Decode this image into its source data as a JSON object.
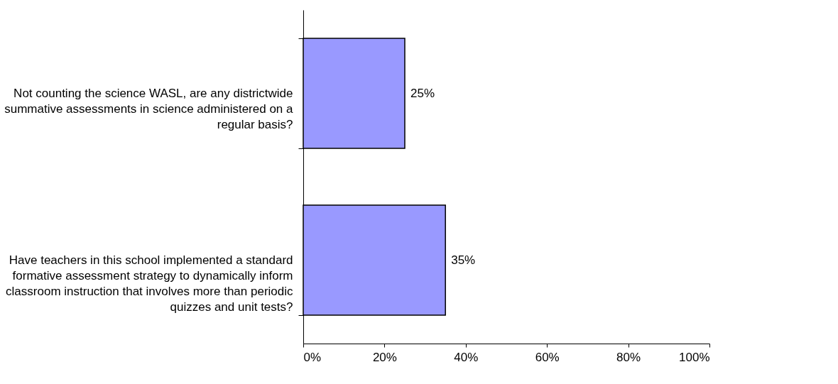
{
  "chart_data": {
    "type": "bar",
    "orientation": "horizontal",
    "categories": [
      "Not counting the science WASL, are any districtwide summative assessments in science administered on a regular basis?",
      "Have teachers in this school implemented a standard formative assessment strategy to dynamically inform classroom instruction that involves more than periodic quizzes and unit tests?"
    ],
    "values": [
      25,
      35
    ],
    "color": "#9999ff",
    "data_labels": true,
    "value_labels": [
      "25%",
      "35%"
    ],
    "xlim": [
      0,
      100
    ],
    "xticks": [
      {
        "value": 0,
        "label": "0%"
      },
      {
        "value": 20,
        "label": "20%"
      },
      {
        "value": 40,
        "label": "40%"
      },
      {
        "value": 60,
        "label": "60%"
      },
      {
        "value": 80,
        "label": "80%"
      },
      {
        "value": 100,
        "label": "100%"
      }
    ],
    "grid": false
  }
}
